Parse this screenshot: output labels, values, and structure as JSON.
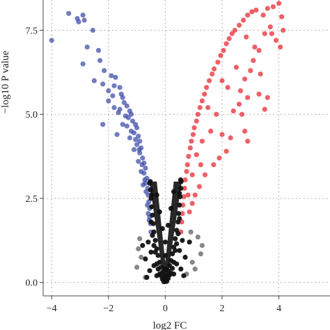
{
  "chart_data": {
    "type": "scatter",
    "title": "",
    "xlabel": "log2 FC",
    "ylabel": "−log10 P value",
    "xlim": [
      -4.3,
      5.8
    ],
    "ylim": [
      -0.4,
      8.4
    ],
    "x_ticks": [
      -4,
      -2,
      0,
      2,
      4
    ],
    "x_tick_labels": [
      "−4",
      "−2",
      "0",
      "2",
      "4"
    ],
    "y_ticks": [
      0.0,
      2.5,
      5.0,
      7.5
    ],
    "y_tick_labels": [
      "0.0",
      "2.5",
      "5.0",
      "7.5"
    ],
    "grid": true,
    "legend": "none",
    "colors": {
      "down": "#3a4aa6",
      "up": "#e8222c",
      "ns": "#111111",
      "ns_light": "#555555"
    },
    "series": [
      {
        "key": "down",
        "values": [
          [
            -4.0,
            7.2
          ],
          [
            -3.4,
            8.0
          ],
          [
            -3.1,
            7.85
          ],
          [
            -3.05,
            7.75
          ],
          [
            -2.9,
            7.95
          ],
          [
            -2.85,
            7.8
          ],
          [
            -2.75,
            7.0
          ],
          [
            -2.9,
            6.5
          ],
          [
            -2.55,
            7.5
          ],
          [
            -2.35,
            6.9
          ],
          [
            -2.3,
            6.6
          ],
          [
            -2.15,
            6.3
          ],
          [
            -2.2,
            5.9
          ],
          [
            -1.9,
            6.15
          ],
          [
            -1.75,
            6.1
          ],
          [
            -1.8,
            5.85
          ],
          [
            -1.6,
            5.8
          ],
          [
            -1.55,
            5.6
          ],
          [
            -1.5,
            5.5
          ],
          [
            -1.45,
            5.35
          ],
          [
            -1.35,
            5.25
          ],
          [
            -1.25,
            5.1
          ],
          [
            -1.2,
            5.0
          ],
          [
            -1.3,
            4.9
          ],
          [
            -1.15,
            4.8
          ],
          [
            -1.05,
            4.7
          ],
          [
            -1.0,
            4.6
          ],
          [
            -1.1,
            4.45
          ],
          [
            -0.95,
            4.35
          ],
          [
            -0.9,
            4.2
          ],
          [
            -1.0,
            4.1
          ],
          [
            -0.85,
            4.0
          ],
          [
            -0.9,
            3.85
          ],
          [
            -0.8,
            3.7
          ],
          [
            -0.75,
            3.55
          ],
          [
            -0.7,
            3.4
          ],
          [
            -0.75,
            3.25
          ],
          [
            -0.65,
            3.1
          ],
          [
            -0.7,
            2.95
          ],
          [
            -0.62,
            2.8
          ],
          [
            -0.6,
            2.6
          ],
          [
            -0.58,
            2.4
          ],
          [
            -0.55,
            2.2
          ],
          [
            -0.55,
            1.95
          ],
          [
            -0.52,
            1.75
          ],
          [
            -0.5,
            1.5
          ],
          [
            -1.5,
            4.7
          ],
          [
            -2.2,
            4.7
          ],
          [
            -1.7,
            4.4
          ],
          [
            -1.25,
            4.3
          ],
          [
            -1.1,
            3.95
          ],
          [
            -0.95,
            3.6
          ],
          [
            -0.85,
            3.3
          ],
          [
            -0.78,
            2.9
          ],
          [
            -1.6,
            5.15
          ],
          [
            -1.4,
            4.95
          ],
          [
            -1.8,
            5.2
          ],
          [
            -2.0,
            5.4
          ],
          [
            -1.65,
            5.05
          ],
          [
            -1.35,
            4.65
          ],
          [
            -1.2,
            4.5
          ],
          [
            -1.05,
            4.25
          ],
          [
            -0.92,
            3.95
          ],
          [
            -0.82,
            3.5
          ],
          [
            -0.72,
            3.05
          ],
          [
            -0.68,
            2.7
          ],
          [
            -0.63,
            2.3
          ],
          [
            -0.6,
            2.05
          ],
          [
            -0.57,
            1.85
          ],
          [
            -2.5,
            6.0
          ],
          [
            -2.0,
            5.7
          ],
          [
            -1.85,
            5.55
          ]
        ]
      },
      {
        "key": "up",
        "values": [
          [
            0.55,
            1.5
          ],
          [
            0.58,
            1.8
          ],
          [
            0.6,
            2.05
          ],
          [
            0.62,
            2.3
          ],
          [
            0.65,
            2.55
          ],
          [
            0.68,
            2.8
          ],
          [
            0.7,
            3.05
          ],
          [
            0.75,
            3.3
          ],
          [
            0.78,
            3.5
          ],
          [
            0.82,
            3.75
          ],
          [
            0.88,
            4.0
          ],
          [
            0.92,
            4.2
          ],
          [
            0.98,
            4.4
          ],
          [
            1.02,
            4.6
          ],
          [
            1.1,
            4.8
          ],
          [
            1.15,
            5.0
          ],
          [
            1.22,
            5.2
          ],
          [
            1.3,
            5.4
          ],
          [
            1.38,
            5.6
          ],
          [
            1.45,
            5.8
          ],
          [
            1.55,
            6.0
          ],
          [
            1.65,
            6.2
          ],
          [
            1.72,
            6.35
          ],
          [
            1.85,
            6.55
          ],
          [
            1.95,
            6.75
          ],
          [
            2.05,
            6.9
          ],
          [
            2.15,
            7.1
          ],
          [
            2.25,
            7.25
          ],
          [
            2.35,
            7.4
          ],
          [
            2.45,
            7.5
          ],
          [
            2.6,
            7.65
          ],
          [
            2.75,
            7.8
          ],
          [
            2.9,
            7.95
          ],
          [
            3.05,
            8.05
          ],
          [
            3.2,
            8.1
          ],
          [
            3.6,
            8.15
          ],
          [
            3.8,
            8.2
          ],
          [
            4.0,
            8.3
          ],
          [
            4.1,
            7.9
          ],
          [
            4.15,
            7.5
          ],
          [
            3.9,
            7.2
          ],
          [
            3.7,
            7.6
          ],
          [
            3.5,
            7.4
          ],
          [
            3.3,
            6.9
          ],
          [
            3.1,
            6.6
          ],
          [
            3.0,
            6.3
          ],
          [
            2.8,
            6.05
          ],
          [
            2.9,
            5.5
          ],
          [
            3.3,
            5.6
          ],
          [
            3.6,
            5.5
          ],
          [
            3.5,
            5.15
          ],
          [
            2.6,
            5.3
          ],
          [
            2.4,
            5.1
          ],
          [
            2.7,
            5.0
          ],
          [
            2.8,
            4.5
          ],
          [
            2.9,
            4.2
          ],
          [
            2.3,
            4.3
          ],
          [
            2.0,
            4.4
          ],
          [
            2.15,
            3.9
          ],
          [
            1.9,
            3.7
          ],
          [
            1.7,
            3.5
          ],
          [
            1.4,
            3.2
          ],
          [
            1.2,
            2.85
          ],
          [
            1.05,
            2.6
          ],
          [
            0.95,
            2.35
          ],
          [
            0.85,
            2.1
          ],
          [
            1.6,
            4.5
          ],
          [
            1.8,
            5.0
          ],
          [
            2.2,
            5.8
          ],
          [
            2.5,
            6.4
          ],
          [
            3.15,
            7.0
          ],
          [
            2.85,
            7.3
          ],
          [
            1.3,
            4.2
          ],
          [
            1.5,
            5.2
          ],
          [
            1.1,
            3.8
          ],
          [
            0.95,
            3.2
          ],
          [
            0.8,
            2.6
          ],
          [
            2.0,
            6.0
          ],
          [
            3.45,
            7.95
          ],
          [
            3.75,
            7.4
          ],
          [
            4.05,
            7.0
          ],
          [
            3.35,
            6.2
          ],
          [
            2.65,
            5.7
          ],
          [
            1.25,
            3.5
          ]
        ]
      },
      {
        "key": "ns",
        "values": [
          [
            0.0,
            0.05
          ],
          [
            -0.05,
            0.15
          ],
          [
            0.05,
            0.2
          ],
          [
            -0.1,
            0.3
          ],
          [
            0.1,
            0.35
          ],
          [
            -0.15,
            0.45
          ],
          [
            0.15,
            0.5
          ],
          [
            -0.2,
            0.6
          ],
          [
            0.2,
            0.65
          ],
          [
            -0.25,
            0.8
          ],
          [
            0.25,
            0.85
          ],
          [
            -0.3,
            1.0
          ],
          [
            0.3,
            1.05
          ],
          [
            -0.35,
            1.25
          ],
          [
            0.35,
            1.3
          ],
          [
            -0.4,
            1.5
          ],
          [
            0.4,
            1.55
          ],
          [
            -0.42,
            1.75
          ],
          [
            0.45,
            1.8
          ],
          [
            -0.45,
            2.0
          ],
          [
            0.47,
            2.05
          ],
          [
            -0.48,
            2.25
          ],
          [
            0.5,
            2.3
          ],
          [
            -0.5,
            2.5
          ],
          [
            0.52,
            2.55
          ],
          [
            -0.52,
            2.75
          ],
          [
            0.55,
            2.8
          ],
          [
            -0.55,
            2.95
          ],
          [
            0.56,
            3.0
          ],
          [
            -0.1,
            0.1
          ],
          [
            0.1,
            0.12
          ],
          [
            -0.2,
            0.25
          ],
          [
            0.2,
            0.28
          ],
          [
            -0.3,
            0.55
          ],
          [
            0.3,
            0.6
          ],
          [
            -0.05,
            0.02
          ],
          [
            0.05,
            0.03
          ],
          [
            -0.35,
            0.9
          ],
          [
            0.35,
            0.95
          ],
          [
            -0.4,
            1.1
          ],
          [
            0.4,
            1.15
          ],
          [
            -0.25,
            0.4
          ],
          [
            0.25,
            0.42
          ],
          [
            -0.15,
            0.2
          ],
          [
            0.15,
            0.22
          ],
          [
            -0.45,
            1.4
          ],
          [
            0.45,
            1.45
          ],
          [
            -0.5,
            1.8
          ],
          [
            0.5,
            1.9
          ],
          [
            -0.48,
            2.6
          ],
          [
            0.5,
            2.65
          ],
          [
            -0.53,
            3.0
          ],
          [
            0.54,
            3.05
          ],
          [
            -0.3,
            0.2
          ],
          [
            0.3,
            0.25
          ],
          [
            -0.4,
            0.5
          ],
          [
            0.4,
            0.55
          ],
          [
            -0.5,
            0.9
          ],
          [
            0.5,
            0.95
          ],
          [
            -0.6,
            1.2
          ],
          [
            0.6,
            1.25
          ],
          [
            -0.7,
            0.7
          ],
          [
            0.7,
            0.75
          ],
          [
            -0.55,
            0.35
          ],
          [
            0.55,
            0.4
          ],
          [
            -0.8,
            1.1
          ],
          [
            0.85,
            1.2
          ],
          [
            -0.65,
            0.15
          ],
          [
            0.65,
            0.2
          ],
          [
            0.0,
            0.4
          ],
          [
            0.0,
            0.8
          ],
          [
            0.0,
            1.2
          ],
          [
            -0.1,
            1.6
          ],
          [
            0.1,
            1.7
          ],
          [
            -0.2,
            2.1
          ],
          [
            0.2,
            2.2
          ],
          [
            -0.3,
            2.6
          ],
          [
            0.3,
            2.7
          ]
        ]
      },
      {
        "key": "ns_light",
        "values": [
          [
            -0.85,
            0.75
          ],
          [
            -0.95,
            1.0
          ],
          [
            0.95,
            0.6
          ],
          [
            1.3,
            1.1
          ],
          [
            1.25,
            0.85
          ],
          [
            0.9,
            1.5
          ],
          [
            -1.0,
            0.45
          ],
          [
            0.75,
            0.25
          ],
          [
            -0.7,
            0.15
          ],
          [
            1.05,
            0.4
          ],
          [
            -0.9,
            1.3
          ],
          [
            1.15,
            1.35
          ]
        ]
      }
    ]
  }
}
